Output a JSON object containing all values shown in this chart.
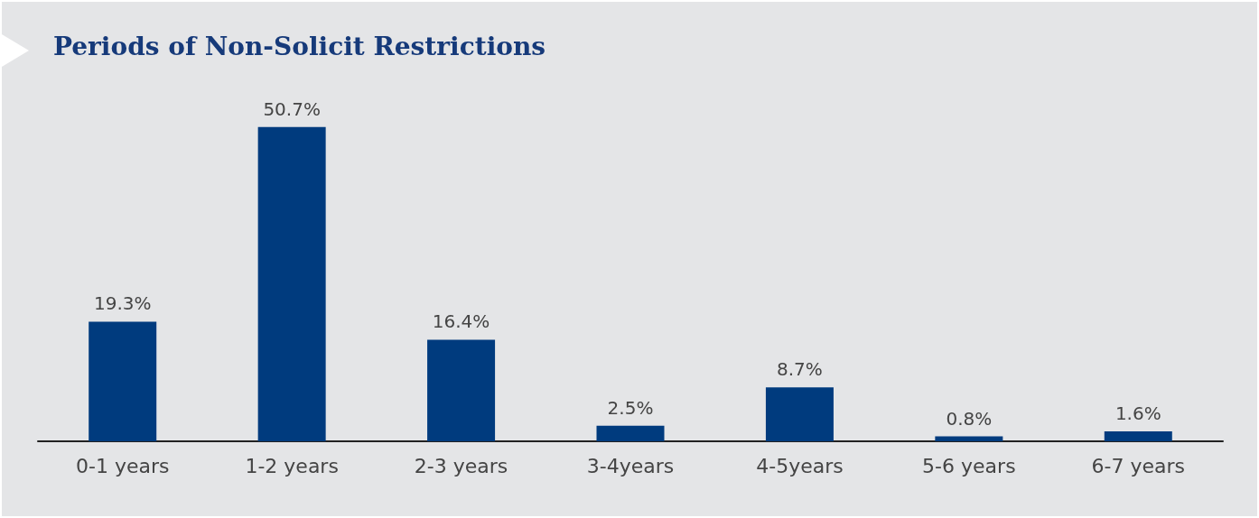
{
  "chart_data": {
    "type": "bar",
    "title": "Periods of Non-Solicit Restrictions",
    "categories": [
      "0-1 years",
      "1-2 years",
      "2-3 years",
      "3-4years",
      "4-5years",
      "5-6 years",
      "6-7 years"
    ],
    "values": [
      19.3,
      50.7,
      16.4,
      2.5,
      8.7,
      0.8,
      1.6
    ],
    "value_labels": [
      "19.3%",
      "50.7%",
      "16.4%",
      "2.5%",
      "8.7%",
      "0.8%",
      "1.6%"
    ],
    "color": "#003b7e"
  }
}
